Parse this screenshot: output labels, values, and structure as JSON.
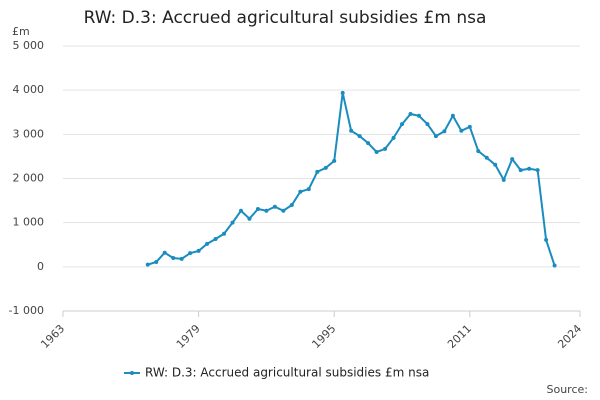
{
  "chart_data": {
    "type": "line",
    "title": "RW: D.3: Accrued agricultural subsidies £m nsa",
    "y_unit": "£m",
    "source": "Source:",
    "x": [
      1973,
      1974,
      1975,
      1976,
      1977,
      1978,
      1979,
      1980,
      1981,
      1982,
      1983,
      1984,
      1985,
      1986,
      1987,
      1988,
      1989,
      1990,
      1991,
      1992,
      1993,
      1994,
      1995,
      1996,
      1997,
      1998,
      1999,
      2000,
      2001,
      2002,
      2003,
      2004,
      2005,
      2006,
      2007,
      2008,
      2009,
      2010,
      2011,
      2012,
      2013,
      2014,
      2015,
      2016,
      2017,
      2018,
      2019,
      2020,
      2021
    ],
    "series": [
      {
        "name": "RW: D.3: Accrued agricultural subsidies £m nsa",
        "color": "#1a8cc0",
        "values": [
          50,
          110,
          320,
          200,
          180,
          310,
          360,
          520,
          630,
          750,
          1000,
          1270,
          1090,
          1310,
          1270,
          1360,
          1270,
          1400,
          1700,
          1760,
          2150,
          2240,
          2400,
          3940,
          3080,
          2960,
          2800,
          2600,
          2670,
          2920,
          3230,
          3460,
          3420,
          3230,
          2960,
          3070,
          3420,
          3080,
          3170,
          2620,
          2470,
          2310,
          1970,
          2440,
          2190,
          2220,
          2190,
          610,
          30
        ]
      }
    ],
    "xlim": [
      1963,
      2024
    ],
    "xticks": [
      1963,
      1979,
      1995,
      2011,
      2024
    ],
    "ylim": [
      -1000,
      5000
    ],
    "yticks": [
      {
        "value": -1000,
        "label": "-1 000"
      },
      0,
      {
        "value": 1000,
        "label": "1 000"
      },
      {
        "value": 2000,
        "label": "2 000"
      },
      {
        "value": 3000,
        "label": "3 000"
      },
      {
        "value": 4000,
        "label": "4 000"
      },
      {
        "value": 5000,
        "label": "5 000"
      }
    ],
    "grid": true
  }
}
